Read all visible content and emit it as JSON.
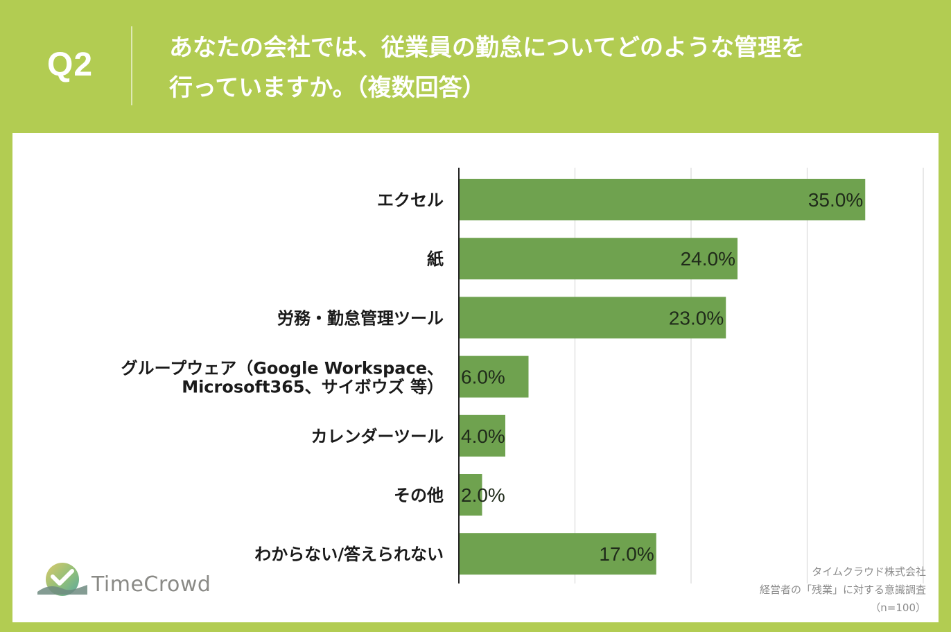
{
  "header": {
    "q_label": "Q2",
    "question_line1": "あなたの会社では、従業員の勤怠についてどのような管理を",
    "question_line2": "行っていますか。（複数回答）"
  },
  "chart_data": {
    "type": "bar",
    "orientation": "horizontal",
    "categories": [
      [
        "エクセル"
      ],
      [
        "紙"
      ],
      [
        "労務・勤怠管理ツール"
      ],
      [
        "グループウェア（Google Workspace、",
        "Microsoft365、サイボウズ 等）"
      ],
      [
        "カレンダーツール"
      ],
      [
        "その他"
      ],
      [
        "わからない/答えられない"
      ]
    ],
    "values": [
      35.0,
      24.0,
      23.0,
      6.0,
      4.0,
      2.0,
      17.0
    ],
    "value_labels": [
      "35.0%",
      "24.0%",
      "23.0%",
      "6.0%",
      "4.0%",
      "2.0%",
      "17.0%"
    ],
    "xlim": [
      0,
      40
    ],
    "gridlines": [
      10,
      20,
      30,
      40
    ],
    "bar_color": "#6fa24f",
    "grid": true
  },
  "footer": {
    "logo_text": "TimeCrowd",
    "source_line1": "タイムクラウド株式会社",
    "source_line2": "経営者の「残業」に対する意識調査",
    "source_line3": "（n=100）"
  },
  "colors": {
    "background": "#b2cc52",
    "panel": "#ffffff",
    "bar": "#6fa24f",
    "grid": "#d9d9d9",
    "axis": "#222222"
  }
}
